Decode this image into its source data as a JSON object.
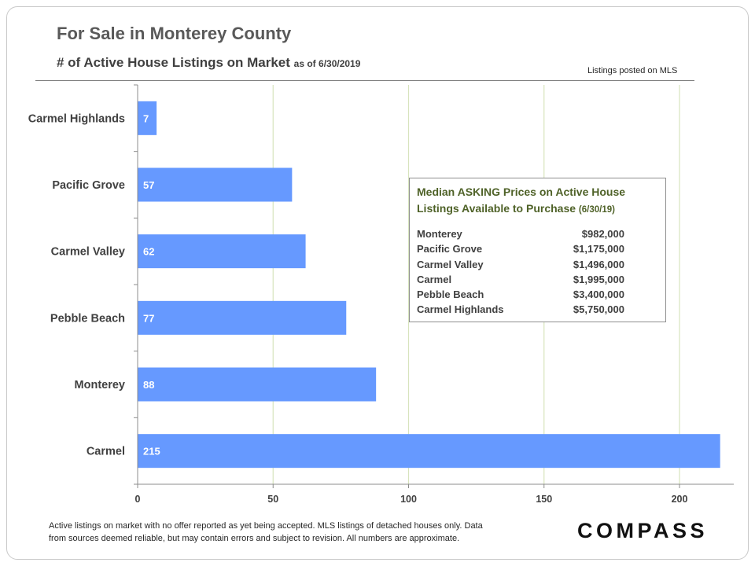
{
  "header": {
    "title": "For Sale in Monterey County",
    "subtitle": "# of Active House Listings on Market",
    "as_of": "as of 6/30/2019",
    "source_note": "Listings posted on MLS"
  },
  "colors": {
    "bar": "#6699FF",
    "gridline": "#D7E4BD",
    "inset_title": "#4F6228"
  },
  "chart_data": {
    "type": "bar",
    "orientation": "horizontal",
    "title": "# of Active House Listings on Market",
    "categories": [
      "Carmel Highlands",
      "Pacific Grove",
      "Carmel Valley",
      "Pebble Beach",
      "Monterey",
      "Carmel"
    ],
    "values": [
      7,
      57,
      62,
      77,
      88,
      215
    ],
    "xlim": [
      0,
      220
    ],
    "xticks": [
      0,
      50,
      100,
      150,
      200
    ],
    "xlabel": "",
    "ylabel": "",
    "grid": true,
    "data_labels": true
  },
  "inset": {
    "title_line1": "Median ASKING Prices on Active House",
    "title_line2": "Listings Available to Purchase",
    "date": "(6/30/19)",
    "rows": [
      {
        "name": "Monterey",
        "price": "$982,000"
      },
      {
        "name": "Pacific Grove",
        "price": "$1,175,000"
      },
      {
        "name": "Carmel Valley",
        "price": "$1,496,000"
      },
      {
        "name": "Carmel",
        "price": "$1,995,000"
      },
      {
        "name": "Pebble Beach",
        "price": "$3,400,000"
      },
      {
        "name": "Carmel Highlands",
        "price": "$5,750,000"
      }
    ]
  },
  "footer": {
    "line1": "Active listings on market with no offer reported as yet being accepted. MLS listings of detached houses only. Data",
    "line2": "from sources deemed reliable, but may contain errors and subject to revision. All numbers are approximate."
  },
  "brand": {
    "logo": "COMPASS"
  }
}
